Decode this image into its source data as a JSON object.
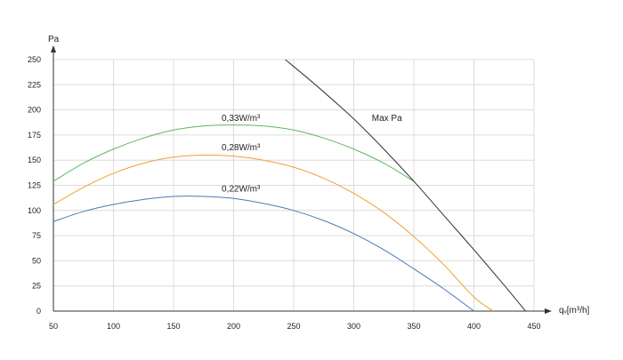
{
  "chart_data": {
    "type": "line",
    "xlabel": "qᵥ[m³/h]",
    "ylabel": "Pa",
    "xlim": [
      50,
      450
    ],
    "ylim": [
      0,
      250
    ],
    "x_ticks": [
      50,
      100,
      150,
      200,
      250,
      300,
      350,
      400,
      450
    ],
    "y_ticks": [
      0,
      25,
      50,
      75,
      100,
      125,
      150,
      175,
      200,
      225,
      250
    ],
    "x_tick_labels": [
      "50",
      "100",
      "150",
      "200",
      "250",
      "300",
      "350",
      "400",
      "450"
    ],
    "y_tick_labels": [
      "0",
      "25",
      "50",
      "75",
      "100",
      "125",
      "150",
      "175",
      "200",
      "225",
      "250"
    ],
    "grid": true,
    "series": [
      {
        "name": "0,33W/m³",
        "color": "#5cb85c",
        "x": [
          50,
          75,
          100,
          125,
          150,
          175,
          200,
          225,
          250,
          275,
          300,
          325,
          350
        ],
        "y": [
          129,
          147,
          161,
          172,
          180,
          184,
          185,
          184,
          180,
          172,
          161,
          147,
          129
        ]
      },
      {
        "name": "0,28W/m³",
        "color": "#f0a030",
        "x": [
          50,
          75,
          100,
          125,
          150,
          175,
          200,
          225,
          250,
          275,
          300,
          325,
          350,
          375,
          400,
          416
        ],
        "y": [
          106,
          123,
          137,
          147,
          153,
          155,
          154,
          150,
          143,
          132,
          117,
          98,
          74,
          46,
          14,
          0
        ]
      },
      {
        "name": "0,22W/m³",
        "color": "#4a7ab5",
        "x": [
          50,
          75,
          100,
          125,
          150,
          175,
          200,
          225,
          250,
          275,
          300,
          325,
          350,
          375,
          400
        ],
        "y": [
          89,
          99,
          106,
          111,
          114,
          114,
          112,
          107,
          100,
          90,
          77,
          61,
          42,
          22,
          0
        ]
      },
      {
        "name": "Max Pa",
        "color": "#333333",
        "x": [
          243,
          270,
          300,
          325,
          350,
          375,
          400,
          425,
          443
        ],
        "y": [
          250,
          223,
          191,
          161,
          129,
          95,
          61,
          26,
          0
        ]
      }
    ],
    "annotations": [
      {
        "text": "0,33W/m³",
        "x": 190,
        "y": 189
      },
      {
        "text": "0,28W/m³",
        "x": 190,
        "y": 160
      },
      {
        "text": "0,22W/m³",
        "x": 190,
        "y": 119
      },
      {
        "text": "Max Pa",
        "x": 315,
        "y": 189
      }
    ]
  }
}
